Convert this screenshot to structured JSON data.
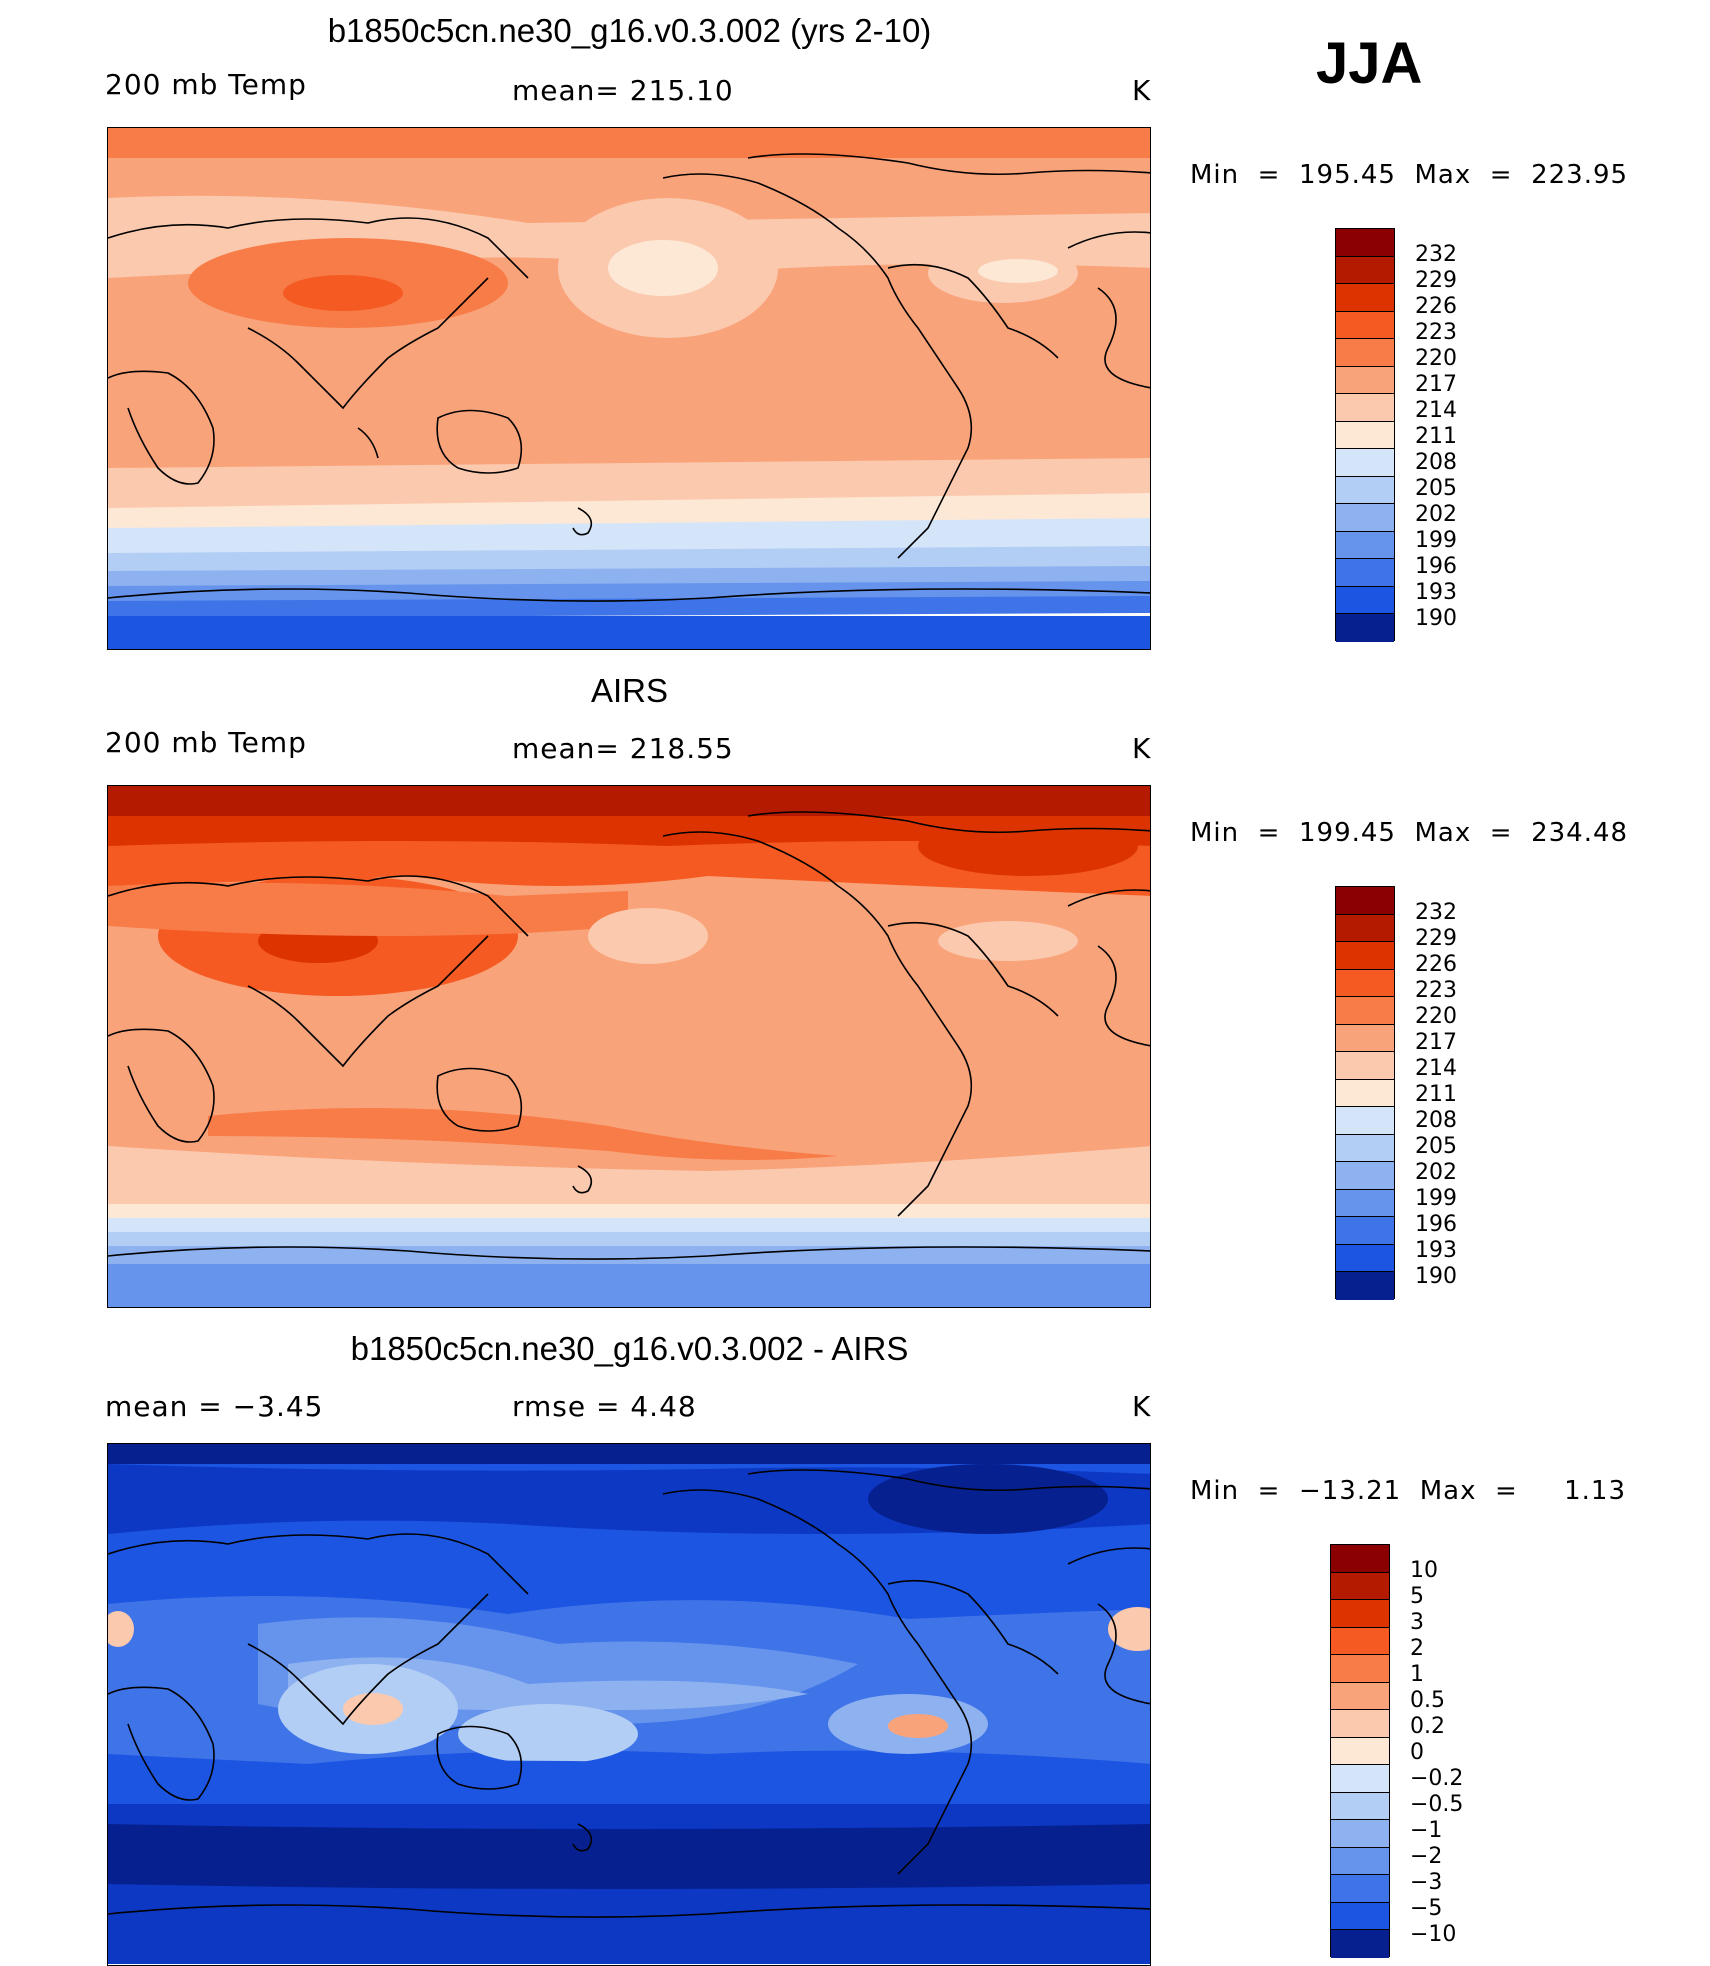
{
  "season": "JJA",
  "panels": [
    {
      "title": "b1850c5cn.ne30_g16.v0.3.002 (yrs 2-10)",
      "left_label": "200 mb Temp",
      "center_label": "mean= 215.10",
      "right_label": "K",
      "minmax": "Min  =  195.45  Max  =  223.95",
      "color_levels": [
        "232",
        "229",
        "226",
        "223",
        "220",
        "217",
        "214",
        "211",
        "208",
        "205",
        "202",
        "199",
        "196",
        "193",
        "190"
      ],
      "field_min": 195.45,
      "field_max": 223.95
    },
    {
      "title": "AIRS",
      "left_label": "200 mb Temp",
      "center_label": "mean= 218.55",
      "right_label": "K",
      "minmax": "Min  =  199.45  Max  =  234.48",
      "color_levels": [
        "232",
        "229",
        "226",
        "223",
        "220",
        "217",
        "214",
        "211",
        "208",
        "205",
        "202",
        "199",
        "196",
        "193",
        "190"
      ],
      "field_min": 199.45,
      "field_max": 234.48
    },
    {
      "title": "b1850c5cn.ne30_g16.v0.3.002 - AIRS",
      "left_label": "mean =    −3.45",
      "center_label": "rmse =     4.48",
      "right_label": "K",
      "minmax": "Min  =  −13.21  Max  =     1.13",
      "color_levels": [
        "10",
        "5",
        "3",
        "2",
        "1",
        "0.5",
        "0.2",
        "0",
        "−0.2",
        "−0.5",
        "−1",
        "−2",
        "−3",
        "−5",
        "−10"
      ],
      "field_min": -13.21,
      "field_max": 1.13
    }
  ],
  "colors": {
    "warm": [
      "#8b0000",
      "#b31a00",
      "#dd3300",
      "#f55a22",
      "#f87c48",
      "#f9a37a",
      "#fbc9ae",
      "#fde8d6"
    ],
    "cool": [
      "#d5e5f9",
      "#b3cef5",
      "#8eb2f0",
      "#6694ec",
      "#3f74e8",
      "#1c55e2",
      "#0c38c4",
      "#06218f",
      "#000a6e"
    ]
  }
}
